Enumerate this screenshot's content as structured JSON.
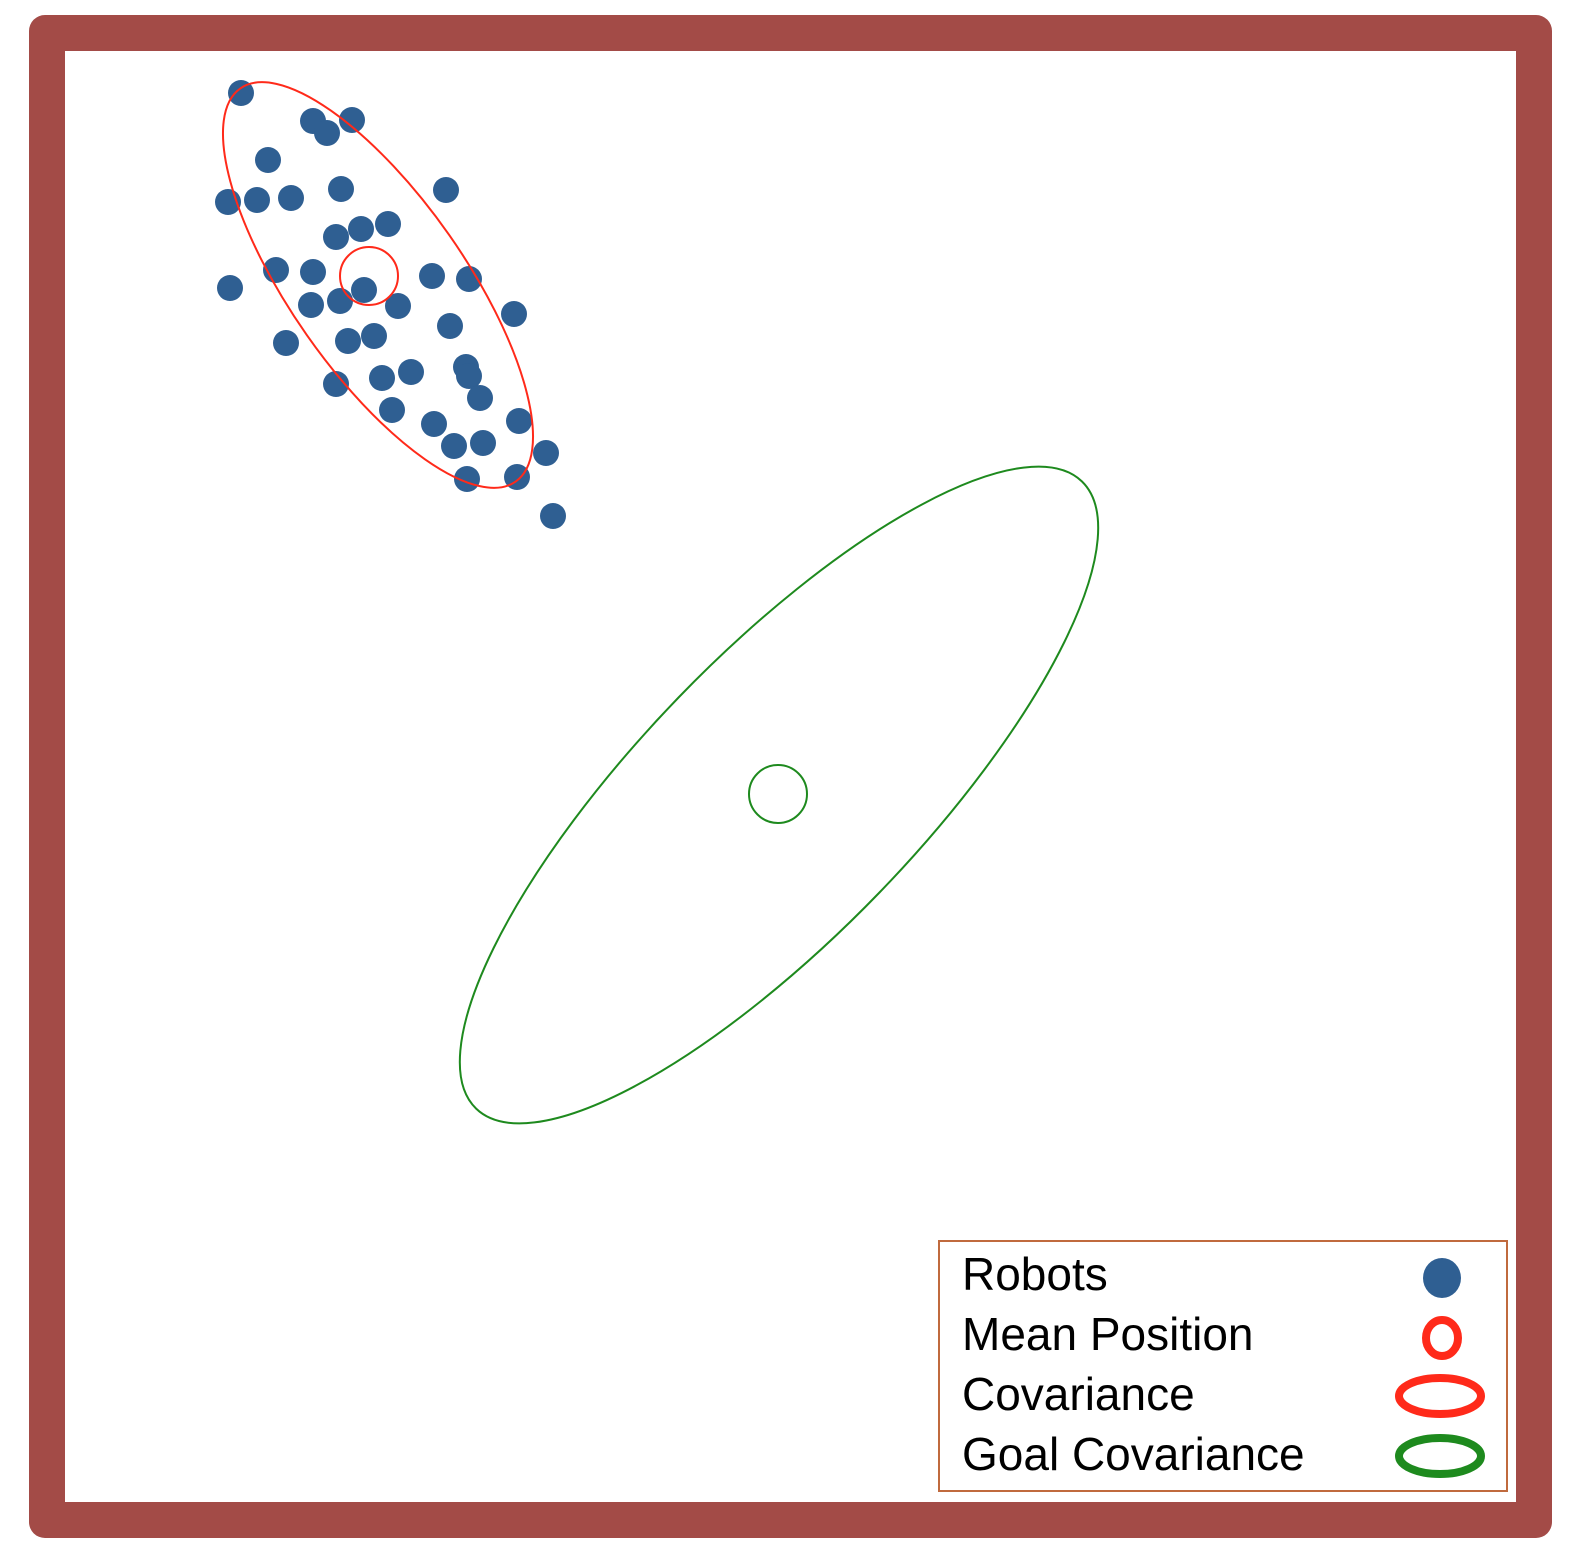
{
  "colors": {
    "frame": "#a34b47",
    "robot": "#2f5f92",
    "covariance": "#ff2a1a",
    "goal": "#1e8a1e",
    "legend_border": "#c06a3e"
  },
  "robots": [
    [
      241,
      93
    ],
    [
      313,
      121
    ],
    [
      327,
      133
    ],
    [
      352,
      120
    ],
    [
      268,
      160
    ],
    [
      446,
      190
    ],
    [
      341,
      189
    ],
    [
      228,
      202
    ],
    [
      257,
      200
    ],
    [
      291,
      198
    ],
    [
      388,
      224
    ],
    [
      361,
      229
    ],
    [
      336,
      237
    ],
    [
      276,
      270
    ],
    [
      313,
      272
    ],
    [
      432,
      276
    ],
    [
      469,
      279
    ],
    [
      230,
      288
    ],
    [
      364,
      290
    ],
    [
      311,
      305
    ],
    [
      340,
      301
    ],
    [
      398,
      306
    ],
    [
      514,
      314
    ],
    [
      450,
      326
    ],
    [
      286,
      343
    ],
    [
      348,
      341
    ],
    [
      374,
      336
    ],
    [
      466,
      367
    ],
    [
      411,
      372
    ],
    [
      382,
      378
    ],
    [
      336,
      384
    ],
    [
      469,
      376
    ],
    [
      480,
      398
    ],
    [
      392,
      410
    ],
    [
      519,
      421
    ],
    [
      434,
      424
    ],
    [
      454,
      446
    ],
    [
      483,
      443
    ],
    [
      546,
      453
    ],
    [
      467,
      479
    ],
    [
      517,
      477
    ],
    [
      553,
      516
    ]
  ],
  "covariance_ellipse": {
    "label": "Covariance"
  },
  "goal_ellipse": {
    "label": "Goal Covariance"
  },
  "legend": {
    "items": [
      {
        "label": "Robots",
        "icon": "robot-dot-icon"
      },
      {
        "label": "Mean Position",
        "icon": "mean-ring-icon"
      },
      {
        "label": "Covariance",
        "icon": "covariance-ellipse-icon"
      },
      {
        "label": "Goal Covariance",
        "icon": "goal-ellipse-icon"
      }
    ]
  }
}
